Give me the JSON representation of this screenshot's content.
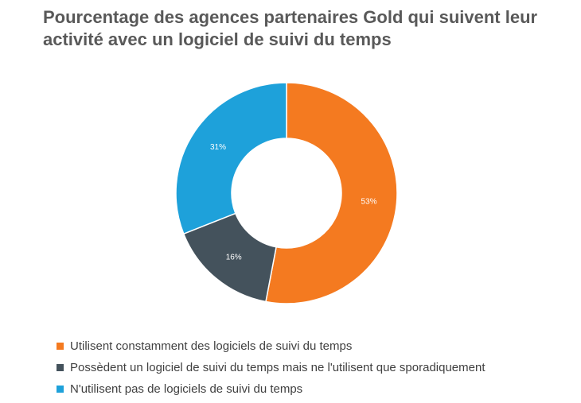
{
  "chart_data": {
    "type": "pie",
    "title": "Pourcentage des agences partenaires Gold qui suivent leur activité avec un logiciel de suivi du temps",
    "donut": true,
    "legend_position": "bottom",
    "slices": [
      {
        "label": "Utilisent constamment des logiciels de suivi du temps",
        "value": 53,
        "value_label": "53%",
        "color": "#f47a20"
      },
      {
        "label": "Possèdent un logiciel de suivi du temps mais ne l'utilisent que sporadiquement",
        "value": 16,
        "value_label": "16%",
        "color": "#44525c"
      },
      {
        "label": "N'utilisent pas de logiciels de suivi du temps",
        "value": 31,
        "value_label": "31%",
        "color": "#1ea1da"
      }
    ]
  }
}
